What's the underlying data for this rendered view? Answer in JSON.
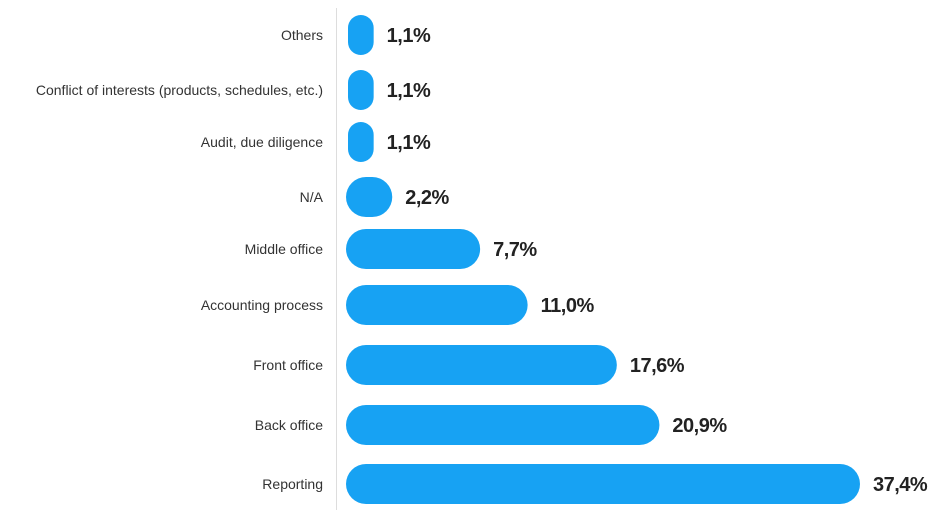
{
  "chart_data": {
    "type": "bar",
    "orientation": "horizontal",
    "title": "",
    "xlabel": "",
    "ylabel": "",
    "categories": [
      "Others",
      "Conflict of interests (products, schedules, etc.)",
      "Audit, due diligence",
      "N/A",
      "Middle office",
      "Accounting process",
      "Front office",
      "Back office",
      "Reporting"
    ],
    "values": [
      1.1,
      1.1,
      1.1,
      2.2,
      7.7,
      11.0,
      17.6,
      20.9,
      37.4
    ],
    "value_labels": [
      "1,1%",
      "1,1%",
      "1,1%",
      "2,2%",
      "7,7%",
      "11,0%",
      "17,6%",
      "20,9%",
      "37,4%"
    ],
    "xlim": [
      0,
      37.4
    ],
    "grid": false,
    "bar_color": "#17A2F3",
    "label_color": "#222222"
  }
}
